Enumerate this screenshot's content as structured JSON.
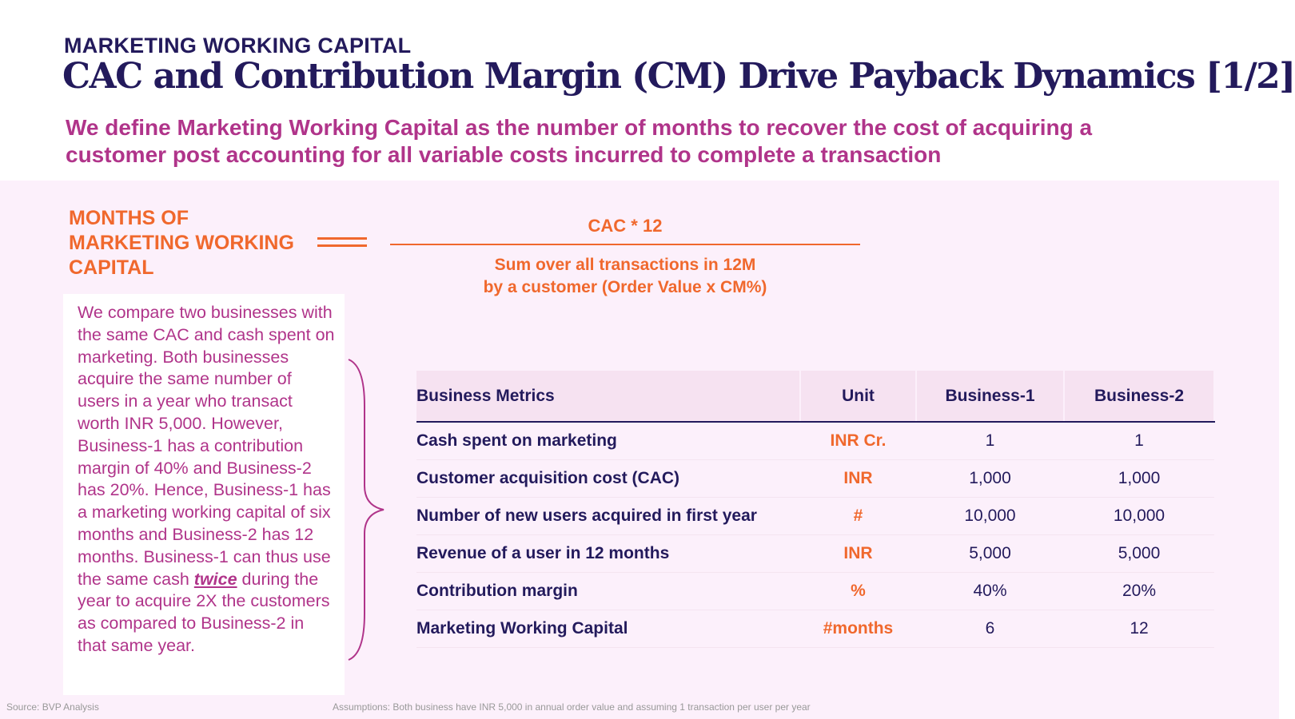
{
  "header": {
    "kicker": "MARKETING WORKING CAPITAL",
    "title": "CAC and Contribution Margin (CM) Drive Payback Dynamics [1/2]",
    "subtitle": "We define Marketing Working Capital as the number of months to recover the cost of acquiring a customer post accounting for all variable costs incurred to complete a transaction"
  },
  "formula": {
    "label": "MONTHS OF MARKETING WORKING CAPITAL",
    "numerator": "CAC * 12",
    "denominator_line1": "Sum over all transactions in 12M",
    "denominator_line2": "by a customer (Order Value x CM%)"
  },
  "note": {
    "before": "We compare two businesses with the same CAC and cash spent on marketing. Both businesses acquire the same number of users in a year who transact worth INR 5,000. However, Business-1 has a contribution margin of 40% and Business-2 has 20%. Hence, Business-1 has a marketing working capital of six months and Business-2 has 12 months. Business-1 can thus use the same cash ",
    "emphasis": "twice",
    "after": " during the year to acquire 2X the customers as compared to Business-2 in that same year."
  },
  "table": {
    "headers": [
      "Business Metrics",
      "Unit",
      "Business-1",
      "Business-2"
    ],
    "rows": [
      [
        "Cash spent on marketing",
        "INR Cr.",
        "1",
        "1"
      ],
      [
        "Customer acquisition cost (CAC)",
        "INR",
        "1,000",
        "1,000"
      ],
      [
        "Number of new users acquired in first year",
        "#",
        "10,000",
        "10,000"
      ],
      [
        "Revenue of a user in 12 months",
        "INR",
        "5,000",
        "5,000"
      ],
      [
        "Contribution margin",
        "%",
        "40%",
        "20%"
      ],
      [
        "Marketing Working Capital",
        "#months",
        "6",
        "12"
      ]
    ]
  },
  "footer": {
    "source": "Source: BVP Analysis",
    "assumptions": "Assumptions: Both business have INR 5,000 in annual order value and assuming 1 transaction per user per year"
  },
  "colors": {
    "navy": "#231a5c",
    "magenta": "#b0348a",
    "orange": "#f0682d",
    "background": "#fcf0fb"
  }
}
